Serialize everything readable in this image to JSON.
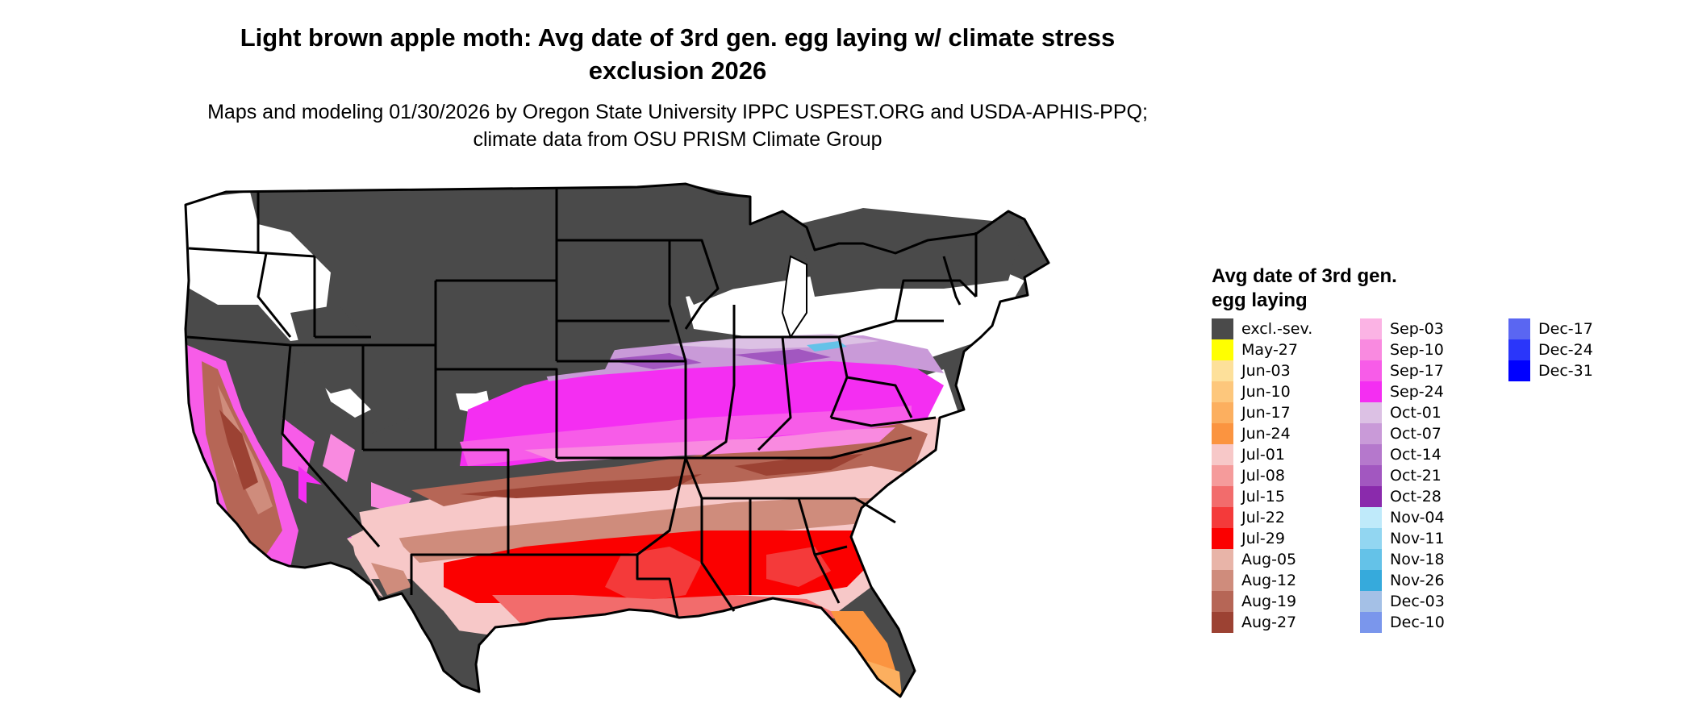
{
  "title": "Light brown apple moth: Avg date of 3rd gen. egg laying w/ climate stress exclusion 2026",
  "subtitle": "Maps and modeling 01/30/2026 by Oregon State University IPPC USPEST.ORG and USDA-APHIS-PPQ; climate data from OSU PRISM Climate Group",
  "legend": {
    "title": "Avg date of 3rd gen. egg laying",
    "items": [
      {
        "label": "excl.-sev.",
        "color": "#4a4a4a"
      },
      {
        "label": "May-27",
        "color": "#ffff00"
      },
      {
        "label": "Jun-03",
        "color": "#fde09a"
      },
      {
        "label": "Jun-10",
        "color": "#fdc77c"
      },
      {
        "label": "Jun-17",
        "color": "#fcaf5f"
      },
      {
        "label": "Jun-24",
        "color": "#fb9440"
      },
      {
        "label": "Jul-01",
        "color": "#f7c8c8"
      },
      {
        "label": "Jul-08",
        "color": "#f59b9b"
      },
      {
        "label": "Jul-15",
        "color": "#f26c6c"
      },
      {
        "label": "Jul-22",
        "color": "#f43a3a"
      },
      {
        "label": "Jul-29",
        "color": "#fb0000"
      },
      {
        "label": "Aug-05",
        "color": "#e8b4a8"
      },
      {
        "label": "Aug-12",
        "color": "#cf8c7c"
      },
      {
        "label": "Aug-19",
        "color": "#b66656"
      },
      {
        "label": "Aug-27",
        "color": "#9c4233"
      },
      {
        "label": "Sep-03",
        "color": "#fbb3e4"
      },
      {
        "label": "Sep-10",
        "color": "#f98ae0"
      },
      {
        "label": "Sep-17",
        "color": "#f75ce8"
      },
      {
        "label": "Sep-24",
        "color": "#f42ef2"
      },
      {
        "label": "Oct-01",
        "color": "#dcc1e4"
      },
      {
        "label": "Oct-07",
        "color": "#c99ad8"
      },
      {
        "label": "Oct-14",
        "color": "#b578cc"
      },
      {
        "label": "Oct-21",
        "color": "#a257c0"
      },
      {
        "label": "Oct-28",
        "color": "#8a2aac"
      },
      {
        "label": "Nov-04",
        "color": "#bfeafa"
      },
      {
        "label": "Nov-11",
        "color": "#92d6f1"
      },
      {
        "label": "Nov-18",
        "color": "#64c2e8"
      },
      {
        "label": "Nov-26",
        "color": "#36aadc"
      },
      {
        "label": "Dec-03",
        "color": "#a4c0e6"
      },
      {
        "label": "Dec-10",
        "color": "#7a96ec"
      },
      {
        "label": "Dec-17",
        "color": "#5a66f2"
      },
      {
        "label": "Dec-24",
        "color": "#2a36fa"
      },
      {
        "label": "Dec-31",
        "color": "#0000ff"
      }
    ]
  }
}
